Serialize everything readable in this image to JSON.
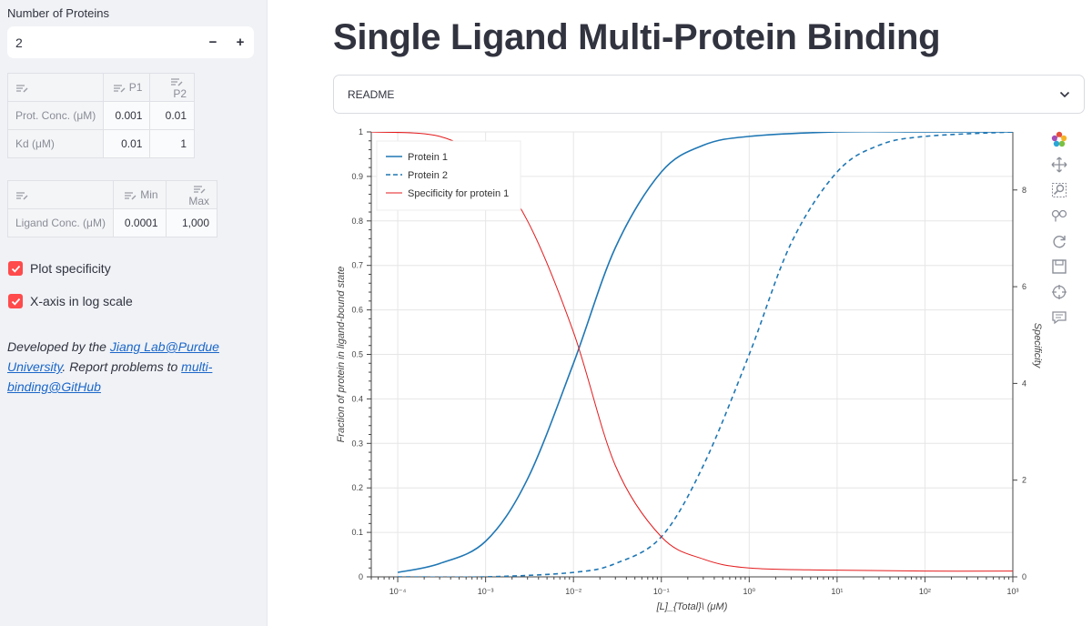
{
  "sidebar": {
    "num_proteins_label": "Number of Proteins",
    "num_proteins_value": "2",
    "minus_label": "−",
    "plus_label": "+",
    "protein_table": {
      "headers": [
        "",
        "P1",
        "P2"
      ],
      "rows": [
        {
          "label": "Prot. Conc. (μM)",
          "values": [
            "0.001",
            "0.01"
          ]
        },
        {
          "label": "Kd (μM)",
          "values": [
            "0.01",
            "1"
          ]
        }
      ]
    },
    "ligand_table": {
      "headers": [
        "",
        "Min",
        "Max"
      ],
      "rows": [
        {
          "label": "Ligand Conc. (μM)",
          "values": [
            "0.0001",
            "1,000"
          ]
        }
      ]
    },
    "checkboxes": [
      {
        "label": "Plot specificity",
        "checked": true
      },
      {
        "label": "X-axis in log scale",
        "checked": true
      }
    ],
    "credit": {
      "prefix": "Developed by the ",
      "link1": "Jiang Lab@Purdue University",
      "middle": ". Report problems to ",
      "link2": "multi-binding@GitHub"
    },
    "accent_color": "#ff4b4b"
  },
  "main": {
    "title": "Single Ligand Multi-Protein Binding",
    "readme_label": "README"
  },
  "toolbar": {
    "icons": [
      "bokeh-logo-icon",
      "pan-icon",
      "box-zoom-icon",
      "wheel-zoom-icon",
      "reset-icon",
      "save-icon",
      "crosshair-icon",
      "hover-icon"
    ]
  },
  "chart_data": {
    "type": "line",
    "x_scale": "log",
    "xlim": [
      5e-05,
      1000
    ],
    "ylim": [
      0,
      1
    ],
    "y2lim": [
      0,
      9.2
    ],
    "xlabel": "[L]_{Total}\\ (μM)",
    "ylabel": "Fraction of protein in ligand-bound state",
    "y2label": "Specificity",
    "x_ticks": [
      "10⁻⁴",
      "10⁻³",
      "10⁻²",
      "10⁻¹",
      "10⁰",
      "10¹",
      "10²",
      "10³"
    ],
    "y_ticks": [
      "0",
      "0.1",
      "0.2",
      "0.3",
      "0.4",
      "0.5",
      "0.6",
      "0.7",
      "0.8",
      "0.9",
      "1"
    ],
    "y2_ticks": [
      "0",
      "2",
      "4",
      "6",
      "8"
    ],
    "legend_position": "top-left",
    "grid": true,
    "series": [
      {
        "name": "Protein 1",
        "color": "#1f77b4",
        "dash": "solid",
        "axis": "left",
        "x": [
          0.0001,
          0.0003,
          0.001,
          0.003,
          0.01,
          0.03,
          0.1,
          0.3,
          1,
          10,
          100,
          1000
        ],
        "y": [
          0.01,
          0.03,
          0.08,
          0.22,
          0.48,
          0.74,
          0.91,
          0.97,
          0.99,
          1.0,
          1.0,
          1.0
        ]
      },
      {
        "name": "Protein 2",
        "color": "#1f77b4",
        "dash": "dashed",
        "axis": "left",
        "x": [
          0.0001,
          0.001,
          0.01,
          0.03,
          0.1,
          0.3,
          1,
          3,
          10,
          30,
          100,
          1000
        ],
        "y": [
          0.0,
          0.0,
          0.01,
          0.03,
          0.09,
          0.25,
          0.5,
          0.75,
          0.91,
          0.97,
          0.99,
          1.0
        ]
      },
      {
        "name": "Specificity for protein 1",
        "color": "#e41a1c",
        "dash": "solid",
        "axis": "left",
        "x": [
          5e-05,
          0.0003,
          0.001,
          0.003,
          0.01,
          0.03,
          0.1,
          0.3,
          1,
          10,
          100,
          1000
        ],
        "y": [
          1.0,
          0.99,
          0.93,
          0.8,
          0.55,
          0.25,
          0.09,
          0.04,
          0.02,
          0.015,
          0.013,
          0.013
        ]
      }
    ]
  }
}
